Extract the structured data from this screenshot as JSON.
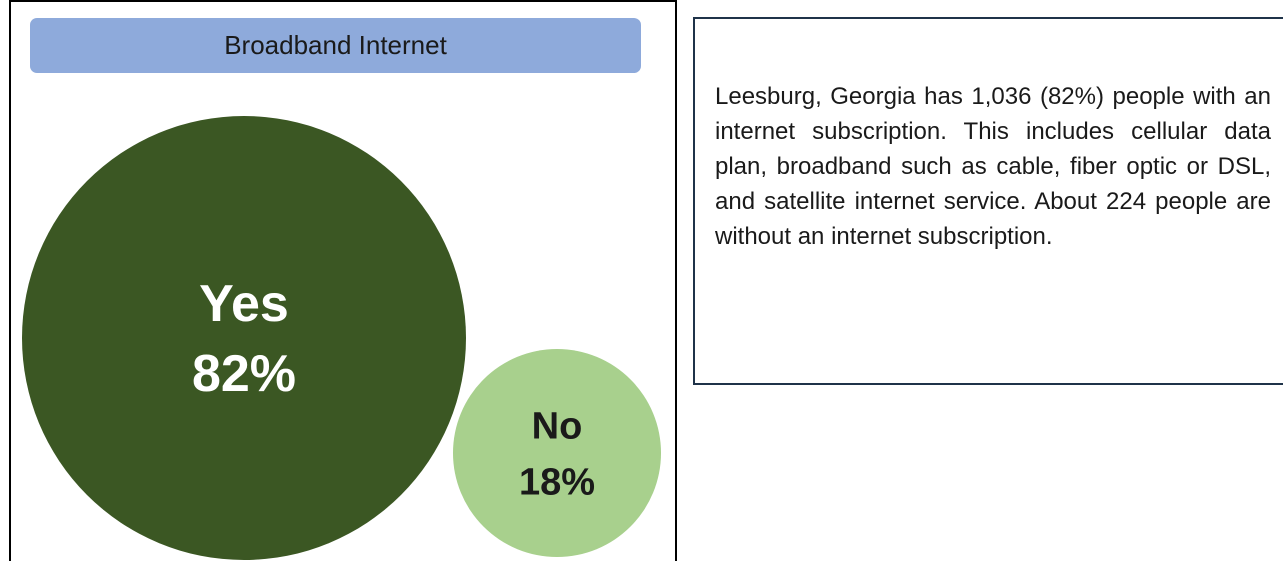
{
  "chart_data": {
    "type": "bubble",
    "title": "Broadband Internet",
    "series": [
      {
        "label": "Yes",
        "value_label": "82%",
        "value": 82,
        "color": "#3b5723",
        "text_color": "#ffffff"
      },
      {
        "label": "No",
        "value_label": "18%",
        "value": 18,
        "color": "#a8d08d",
        "text_color": "#1a1a1a"
      }
    ]
  },
  "colors": {
    "title_bar": "#8eaadb",
    "panel_border": "#000000",
    "text_panel_border": "#1f3349"
  },
  "summary": {
    "text": "Leesburg, Georgia has 1,036 (82%) people with an internet subscription. This includes cellular data plan, broadband such as cable, fiber optic or DSL, and satellite internet service. About 224 people are without an internet subscription."
  }
}
